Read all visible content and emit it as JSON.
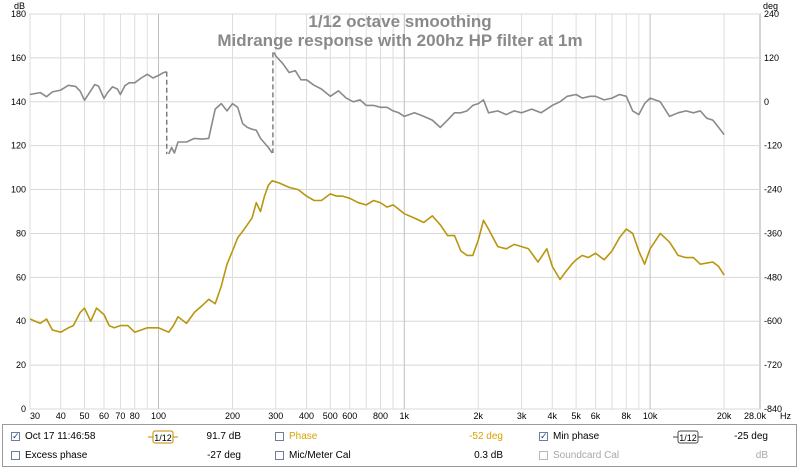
{
  "chart_data": {
    "type": "line",
    "title_lines": [
      "1/12 octave smoothing",
      "Midrange response with 200hz HP filter at 1m"
    ],
    "x_scale": "log",
    "xlim": [
      30,
      28000
    ],
    "x_unit": "Hz",
    "x_ticks": [
      30,
      40,
      50,
      60,
      70,
      80,
      100,
      200,
      300,
      400,
      500,
      600,
      800,
      1000,
      2000,
      3000,
      4000,
      5000,
      6000,
      8000,
      10000,
      20000,
      28000
    ],
    "x_tick_labels": [
      "30",
      "40",
      "50",
      "60",
      "70",
      "80",
      "100",
      "200",
      "300",
      "400",
      "500",
      "600",
      "800",
      "1k",
      "2k",
      "3k",
      "4k",
      "5k",
      "6k",
      "8k",
      "10k",
      "20k",
      "28.0k"
    ],
    "left_axis": {
      "unit": "dB",
      "ylim": [
        0,
        180
      ],
      "ticks": [
        "0",
        "20",
        "40",
        "60",
        "80",
        "100",
        "120",
        "140",
        "160",
        "180"
      ]
    },
    "right_axis": {
      "unit": "deg",
      "ylim": [
        -840,
        240
      ],
      "ticks": [
        "-840",
        "-720",
        "-600",
        "-480",
        "-360",
        "-240",
        "-120",
        "0",
        "120",
        "240"
      ]
    },
    "grid": true,
    "series": [
      {
        "name": "Oct 17 11:46:58",
        "axis": "left",
        "color": "#b8960f",
        "points": [
          [
            30,
            41
          ],
          [
            33,
            39
          ],
          [
            35,
            41
          ],
          [
            37,
            36
          ],
          [
            40,
            35
          ],
          [
            43,
            37
          ],
          [
            45,
            38
          ],
          [
            48,
            44
          ],
          [
            50,
            46
          ],
          [
            53,
            40
          ],
          [
            56,
            46
          ],
          [
            60,
            43
          ],
          [
            63,
            38
          ],
          [
            66,
            37
          ],
          [
            70,
            38
          ],
          [
            75,
            38
          ],
          [
            80,
            35
          ],
          [
            85,
            36
          ],
          [
            90,
            37
          ],
          [
            95,
            37
          ],
          [
            100,
            37
          ],
          [
            105,
            36
          ],
          [
            110,
            35
          ],
          [
            115,
            38
          ],
          [
            120,
            42
          ],
          [
            130,
            39
          ],
          [
            140,
            44
          ],
          [
            150,
            47
          ],
          [
            160,
            50
          ],
          [
            170,
            48
          ],
          [
            180,
            56
          ],
          [
            190,
            66
          ],
          [
            200,
            72
          ],
          [
            210,
            78
          ],
          [
            220,
            81
          ],
          [
            240,
            87
          ],
          [
            250,
            94
          ],
          [
            260,
            90
          ],
          [
            270,
            97
          ],
          [
            280,
            102
          ],
          [
            290,
            104
          ],
          [
            310,
            103
          ],
          [
            340,
            101
          ],
          [
            370,
            100
          ],
          [
            400,
            97
          ],
          [
            430,
            95
          ],
          [
            460,
            95
          ],
          [
            500,
            98
          ],
          [
            530,
            97
          ],
          [
            560,
            97
          ],
          [
            600,
            96
          ],
          [
            650,
            94
          ],
          [
            700,
            93
          ],
          [
            750,
            95
          ],
          [
            800,
            94
          ],
          [
            850,
            92
          ],
          [
            900,
            93
          ],
          [
            950,
            91
          ],
          [
            1000,
            89
          ],
          [
            1100,
            87
          ],
          [
            1200,
            85
          ],
          [
            1300,
            88
          ],
          [
            1400,
            84
          ],
          [
            1500,
            79
          ],
          [
            1600,
            79
          ],
          [
            1700,
            72
          ],
          [
            1800,
            70
          ],
          [
            1900,
            70
          ],
          [
            2000,
            77
          ],
          [
            2100,
            86
          ],
          [
            2200,
            82
          ],
          [
            2400,
            74
          ],
          [
            2600,
            73
          ],
          [
            2800,
            75
          ],
          [
            3000,
            74
          ],
          [
            3200,
            73
          ],
          [
            3500,
            67
          ],
          [
            3800,
            73
          ],
          [
            4000,
            65
          ],
          [
            4300,
            59
          ],
          [
            4500,
            62
          ],
          [
            4800,
            66
          ],
          [
            5000,
            68
          ],
          [
            5300,
            70
          ],
          [
            5600,
            69
          ],
          [
            6000,
            71
          ],
          [
            6500,
            68
          ],
          [
            7000,
            72
          ],
          [
            7500,
            78
          ],
          [
            8000,
            82
          ],
          [
            8500,
            80
          ],
          [
            9000,
            72
          ],
          [
            9500,
            66
          ],
          [
            10000,
            73
          ],
          [
            11000,
            80
          ],
          [
            12000,
            76
          ],
          [
            13000,
            70
          ],
          [
            14000,
            69
          ],
          [
            15000,
            69
          ],
          [
            16000,
            66
          ],
          [
            18000,
            67
          ],
          [
            19000,
            65
          ],
          [
            20000,
            61
          ]
        ]
      },
      {
        "name": "Min phase",
        "axis": "right",
        "color": "#8a8a8a",
        "points": [
          [
            30,
            20
          ],
          [
            33,
            25
          ],
          [
            35,
            14
          ],
          [
            37,
            27
          ],
          [
            40,
            32
          ],
          [
            43,
            45
          ],
          [
            46,
            42
          ],
          [
            48,
            29
          ],
          [
            50,
            4
          ],
          [
            53,
            30
          ],
          [
            55,
            47
          ],
          [
            57,
            43
          ],
          [
            60,
            9
          ],
          [
            62,
            25
          ],
          [
            65,
            41
          ],
          [
            68,
            35
          ],
          [
            70,
            20
          ],
          [
            73,
            44
          ],
          [
            76,
            52
          ],
          [
            80,
            52
          ],
          [
            85,
            65
          ],
          [
            90,
            75
          ],
          [
            95,
            65
          ],
          [
            100,
            72
          ],
          [
            105,
            80
          ],
          [
            108,
            82
          ],
          [
            110,
            -143
          ],
          [
            113,
            -125
          ],
          [
            116,
            -140
          ],
          [
            120,
            -110
          ],
          [
            130,
            -110
          ],
          [
            140,
            -100
          ],
          [
            150,
            -102
          ],
          [
            160,
            -100
          ],
          [
            170,
            -20
          ],
          [
            180,
            -5
          ],
          [
            190,
            -25
          ],
          [
            200,
            -5
          ],
          [
            210,
            -15
          ],
          [
            220,
            -60
          ],
          [
            230,
            -70
          ],
          [
            240,
            -75
          ],
          [
            250,
            -78
          ],
          [
            260,
            -100
          ],
          [
            280,
            -125
          ],
          [
            290,
            -140
          ],
          [
            295,
            135
          ],
          [
            300,
            125
          ],
          [
            320,
            105
          ],
          [
            340,
            80
          ],
          [
            360,
            85
          ],
          [
            380,
            60
          ],
          [
            400,
            60
          ],
          [
            430,
            45
          ],
          [
            460,
            35
          ],
          [
            500,
            15
          ],
          [
            540,
            30
          ],
          [
            580,
            10
          ],
          [
            620,
            0
          ],
          [
            660,
            5
          ],
          [
            700,
            -10
          ],
          [
            750,
            -10
          ],
          [
            800,
            -15
          ],
          [
            850,
            -15
          ],
          [
            900,
            -25
          ],
          [
            950,
            -30
          ],
          [
            1000,
            -40
          ],
          [
            1100,
            -30
          ],
          [
            1200,
            -40
          ],
          [
            1300,
            -50
          ],
          [
            1400,
            -70
          ],
          [
            1500,
            -50
          ],
          [
            1600,
            -30
          ],
          [
            1700,
            -30
          ],
          [
            1800,
            -25
          ],
          [
            1900,
            -10
          ],
          [
            2000,
            -5
          ],
          [
            2100,
            5
          ],
          [
            2200,
            -30
          ],
          [
            2400,
            -25
          ],
          [
            2600,
            -35
          ],
          [
            2800,
            -25
          ],
          [
            3000,
            -30
          ],
          [
            3300,
            -20
          ],
          [
            3600,
            -30
          ],
          [
            4000,
            -10
          ],
          [
            4300,
            0
          ],
          [
            4600,
            15
          ],
          [
            5000,
            20
          ],
          [
            5300,
            10
          ],
          [
            5700,
            15
          ],
          [
            6000,
            15
          ],
          [
            6500,
            5
          ],
          [
            7000,
            10
          ],
          [
            7500,
            20
          ],
          [
            8000,
            15
          ],
          [
            8500,
            -25
          ],
          [
            9000,
            -35
          ],
          [
            9500,
            -5
          ],
          [
            10000,
            10
          ],
          [
            11000,
            0
          ],
          [
            12000,
            -40
          ],
          [
            13000,
            -30
          ],
          [
            14000,
            -25
          ],
          [
            15000,
            -30
          ],
          [
            16000,
            -25
          ],
          [
            17000,
            -45
          ],
          [
            18000,
            -50
          ],
          [
            19000,
            -70
          ],
          [
            20000,
            -90
          ]
        ]
      }
    ],
    "phase_wrap_markers_hz": [
      108,
      292
    ]
  },
  "legend": {
    "row1": [
      {
        "label": "Oct 17 11:46:58",
        "checked": true,
        "smoothing": "1/12",
        "value": "91.7 dB",
        "color": "#c08a00"
      },
      {
        "label": "Phase",
        "checked": false,
        "value": "-52 deg",
        "color": "#d8a300"
      },
      {
        "label": "Min phase",
        "checked": true,
        "smoothing": "1/12",
        "value": "-25 deg",
        "color": "#4a4a4a"
      }
    ],
    "row2": [
      {
        "label": "Excess phase",
        "checked": false,
        "value": "-27 deg",
        "color": "#4a4a4a"
      },
      {
        "label": "Mic/Meter Cal",
        "checked": false,
        "value": "0.3 dB",
        "color": "#000000"
      },
      {
        "label": "Soundcard Cal",
        "checked": false,
        "value": "dB",
        "color": "#a8a8a8",
        "disabled": true
      }
    ]
  }
}
